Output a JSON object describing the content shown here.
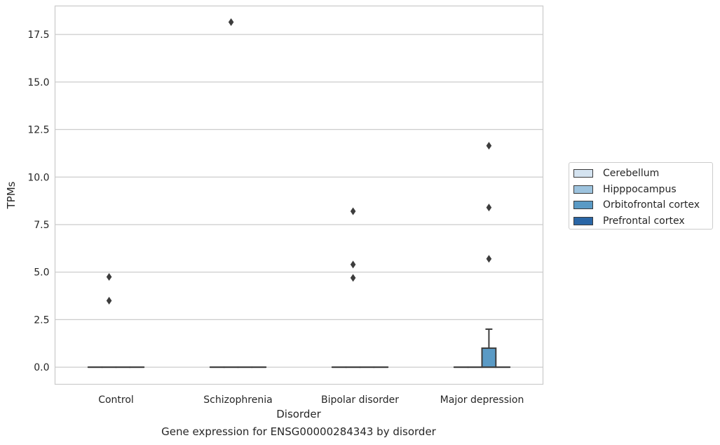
{
  "chart_data": {
    "type": "box",
    "title": "",
    "xlabel": "Disorder",
    "ylabel": "TPMs",
    "caption": "Gene expression for ENSG00000284343 by disorder",
    "categories": [
      "Control",
      "Schizophrenia",
      "Bipolar disorder",
      "Major depression"
    ],
    "ylim": [
      -0.9,
      19.0
    ],
    "yticks": [
      0.0,
      2.5,
      5.0,
      7.5,
      10.0,
      12.5,
      15.0,
      17.5
    ],
    "ytick_labels": [
      "0.0",
      "2.5",
      "5.0",
      "7.5",
      "10.0",
      "12.5",
      "15.0",
      "17.5"
    ],
    "grid": "horizontal",
    "legend_position": "right",
    "series": [
      {
        "name": "Cerebellum",
        "color": "#d4e3f0",
        "boxes": [
          {
            "category": "Control",
            "q1": 0,
            "median": 0,
            "q3": 0,
            "whisker_low": 0,
            "whisker_high": 0,
            "outliers": []
          },
          {
            "category": "Schizophrenia",
            "q1": 0,
            "median": 0,
            "q3": 0,
            "whisker_low": 0,
            "whisker_high": 0,
            "outliers": []
          },
          {
            "category": "Bipolar disorder",
            "q1": 0,
            "median": 0,
            "q3": 0,
            "whisker_low": 0,
            "whisker_high": 0,
            "outliers": []
          },
          {
            "category": "Major depression",
            "q1": 0,
            "median": 0,
            "q3": 0,
            "whisker_low": 0,
            "whisker_high": 0,
            "outliers": []
          }
        ]
      },
      {
        "name": "Hipppocampus",
        "color": "#9dc3de",
        "boxes": [
          {
            "category": "Control",
            "q1": 0,
            "median": 0,
            "q3": 0,
            "whisker_low": 0,
            "whisker_high": 0,
            "outliers": [
              4.75,
              3.5
            ]
          },
          {
            "category": "Schizophrenia",
            "q1": 0,
            "median": 0,
            "q3": 0,
            "whisker_low": 0,
            "whisker_high": 0,
            "outliers": [
              18.15
            ]
          },
          {
            "category": "Bipolar disorder",
            "q1": 0,
            "median": 0,
            "q3": 0,
            "whisker_low": 0,
            "whisker_high": 0,
            "outliers": [
              8.2,
              5.4,
              4.7
            ]
          },
          {
            "category": "Major depression",
            "q1": 0,
            "median": 0,
            "q3": 0,
            "whisker_low": 0,
            "whisker_high": 0,
            "outliers": []
          }
        ]
      },
      {
        "name": "Orbitofrontal cortex",
        "color": "#5a9ac5",
        "boxes": [
          {
            "category": "Control",
            "q1": 0,
            "median": 0,
            "q3": 0,
            "whisker_low": 0,
            "whisker_high": 0,
            "outliers": []
          },
          {
            "category": "Schizophrenia",
            "q1": 0,
            "median": 0,
            "q3": 0,
            "whisker_low": 0,
            "whisker_high": 0,
            "outliers": []
          },
          {
            "category": "Bipolar disorder",
            "q1": 0,
            "median": 0,
            "q3": 0,
            "whisker_low": 0,
            "whisker_high": 0,
            "outliers": []
          },
          {
            "category": "Major depression",
            "q1": 0,
            "median": 0,
            "q3": 1.0,
            "whisker_low": 0,
            "whisker_high": 2.0,
            "outliers": [
              11.65,
              8.4,
              5.7
            ]
          }
        ]
      },
      {
        "name": "Prefrontal cortex",
        "color": "#2a66a6",
        "boxes": [
          {
            "category": "Control",
            "q1": 0,
            "median": 0,
            "q3": 0,
            "whisker_low": 0,
            "whisker_high": 0,
            "outliers": []
          },
          {
            "category": "Schizophrenia",
            "q1": 0,
            "median": 0,
            "q3": 0,
            "whisker_low": 0,
            "whisker_high": 0,
            "outliers": []
          },
          {
            "category": "Bipolar disorder",
            "q1": 0,
            "median": 0,
            "q3": 0,
            "whisker_low": 0,
            "whisker_high": 0,
            "outliers": []
          },
          {
            "category": "Major depression",
            "q1": 0,
            "median": 0,
            "q3": 0,
            "whisker_low": 0,
            "whisker_high": 0,
            "outliers": []
          }
        ]
      }
    ]
  },
  "colors": {
    "grid": "#cccccc",
    "frame": "#cccccc",
    "box_edge": "#3d3d3d",
    "flier": "#3d3d3d"
  }
}
